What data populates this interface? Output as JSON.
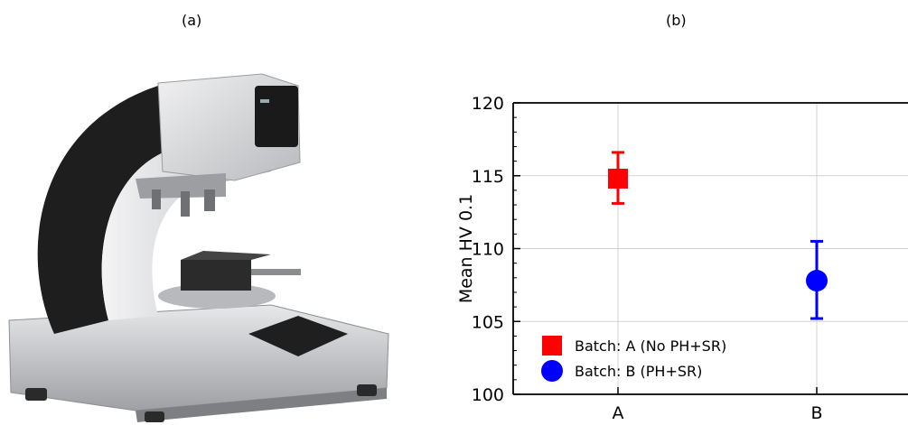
{
  "panels": {
    "a_label": "(a)",
    "b_label": "(b)"
  },
  "photo": {
    "subject": "microhardness-tester-photo",
    "colors": {
      "body": "#d9dadc",
      "arc": "#1e1e1e",
      "base": "#c8c9cb"
    }
  },
  "chart_data": {
    "type": "scatter",
    "title": "",
    "xlabel": "",
    "ylabel": "Mean HV 0.1",
    "categories": [
      "A",
      "B"
    ],
    "ylim": [
      100,
      120
    ],
    "yticks": [
      100,
      105,
      110,
      115,
      120
    ],
    "grid": true,
    "legend_position": "bottom-left",
    "series": [
      {
        "name": "Batch: A (No PH+SR)",
        "category": "A",
        "value": 114.8,
        "err_low": 113.1,
        "err_high": 116.6,
        "color": "#ff0000",
        "marker": "square"
      },
      {
        "name": "Batch: B (PH+SR)",
        "category": "B",
        "value": 107.8,
        "err_low": 105.2,
        "err_high": 110.5,
        "color": "#0000ff",
        "marker": "circle"
      }
    ]
  }
}
